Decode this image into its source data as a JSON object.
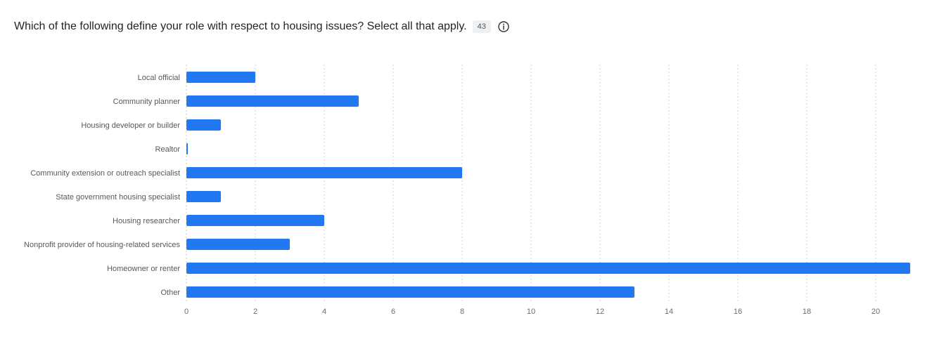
{
  "question": {
    "title": "Which of the following define your role with respect to housing issues? Select all that apply.",
    "response_count": "43",
    "info_icon": "info-icon"
  },
  "colors": {
    "bar": "#2178f0",
    "grid": "#d4d6d9",
    "axis": "#c7c9cc"
  },
  "chart_data": {
    "type": "bar",
    "orientation": "horizontal",
    "title": "Which of the following define your role with respect to housing issues? Select all that apply.",
    "categories": [
      "Local official",
      "Community planner",
      "Housing developer or builder",
      "Realtor",
      "Community extension or outreach specialist",
      "State government housing specialist",
      "Housing researcher",
      "Nonprofit provider of housing-related services",
      "Homeowner or renter",
      "Other"
    ],
    "values": [
      2,
      5,
      1,
      0,
      8,
      1,
      4,
      3,
      21,
      13
    ],
    "xlim": [
      0,
      21
    ],
    "xticks": [
      0,
      2,
      4,
      6,
      8,
      10,
      12,
      14,
      16,
      18,
      20
    ],
    "grid": true,
    "xlabel": "",
    "ylabel": ""
  }
}
